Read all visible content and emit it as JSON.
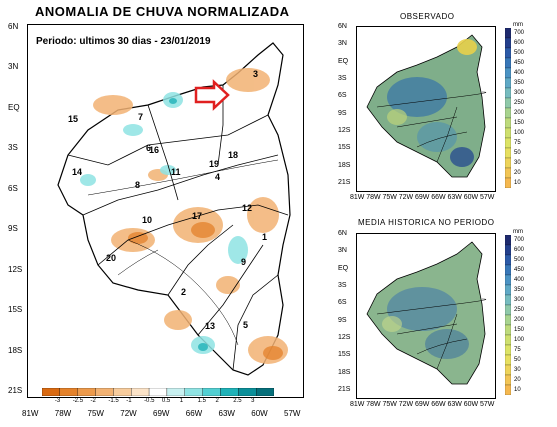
{
  "main_map": {
    "title": "ANOMALIA DE CHUVA NORMALIZADA",
    "period_label": "Periodo: ultimos 30 dias - 23/01/2019",
    "lat_ticks": [
      "6N",
      "3N",
      "EQ",
      "3S",
      "6S",
      "9S",
      "12S",
      "15S",
      "18S",
      "21S"
    ],
    "lon_ticks": [
      "81W",
      "78W",
      "75W",
      "72W",
      "69W",
      "66W",
      "63W",
      "60W",
      "57W"
    ],
    "regions": [
      "1",
      "2",
      "3",
      "4",
      "5",
      "6",
      "7",
      "8",
      "9",
      "10",
      "11",
      "12",
      "13",
      "14",
      "15",
      "16",
      "17",
      "18",
      "19",
      "20"
    ],
    "colorbar_labels": [
      "-3",
      "-2.5",
      "-2",
      "-1.5",
      "-1",
      "-0.5",
      "0.5",
      "1",
      "1.5",
      "2",
      "2.5",
      "3"
    ],
    "colorbar_colors": [
      "#d96a12",
      "#e4822b",
      "#ec9a4c",
      "#f2b273",
      "#f7cc9d",
      "#fbe3c8",
      "#ffffff",
      "#c8f0f0",
      "#8fe3e3",
      "#52cfd2",
      "#1fb2b8",
      "#0b8f99",
      "#066f7a"
    ]
  },
  "observed_map": {
    "title": "OBSERVADO",
    "lat_ticks": [
      "6N",
      "3N",
      "EQ",
      "3S",
      "6S",
      "9S",
      "12S",
      "15S",
      "18S",
      "21S"
    ],
    "lon_ticks": [
      "81W",
      "78W",
      "75W",
      "72W",
      "69W",
      "66W",
      "63W",
      "60W",
      "57W"
    ],
    "unit": "mm",
    "colorbar_labels": [
      "700",
      "600",
      "500",
      "450",
      "400",
      "350",
      "300",
      "250",
      "200",
      "150",
      "100",
      "75",
      "50",
      "30",
      "20",
      "10"
    ]
  },
  "historical_map": {
    "title": "MEDIA HISTORICA NO PERIODO",
    "lat_ticks": [
      "6N",
      "3N",
      "EQ",
      "3S",
      "6S",
      "9S",
      "12S",
      "15S",
      "18S",
      "21S"
    ],
    "lon_ticks": [
      "81W",
      "78W",
      "75W",
      "72W",
      "69W",
      "66W",
      "63W",
      "60W",
      "57W"
    ],
    "unit": "mm",
    "colorbar_labels": [
      "700",
      "600",
      "500",
      "450",
      "400",
      "350",
      "300",
      "250",
      "200",
      "150",
      "100",
      "75",
      "50",
      "30",
      "20",
      "10"
    ]
  }
}
